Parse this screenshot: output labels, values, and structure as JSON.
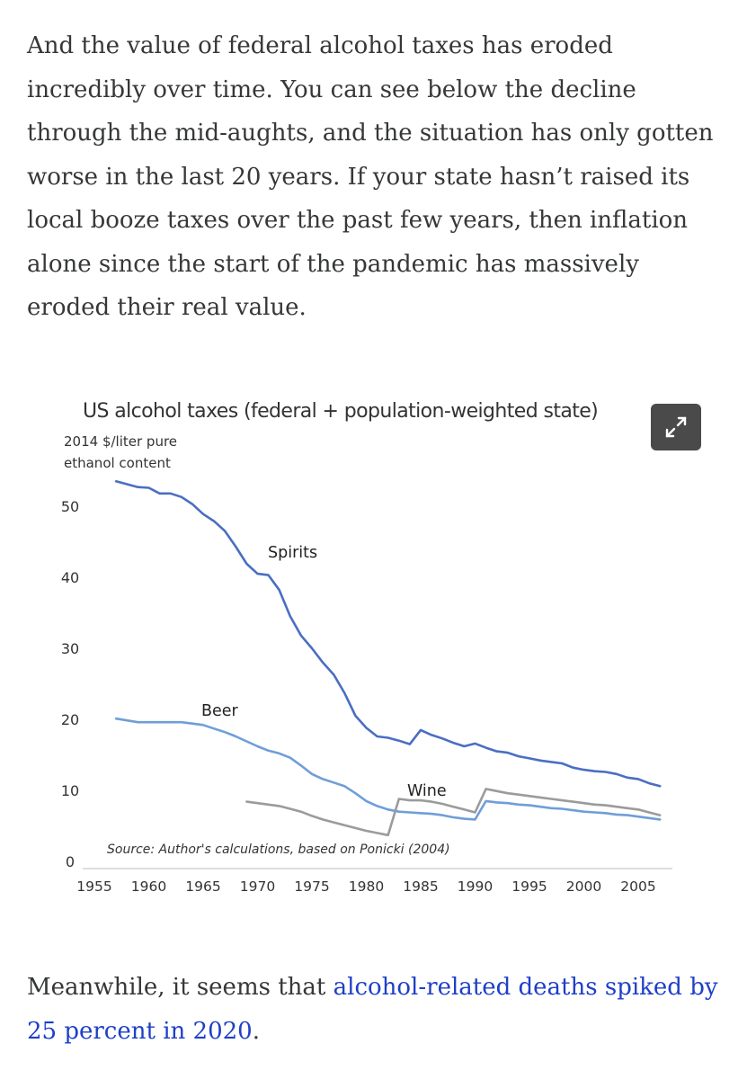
{
  "article": {
    "intro": "And the value of federal alcohol taxes has eroded incredibly over time. You can see below the decline through the mid-aughts, and the situation has only gotten worse in the last 20 years. If your state hasn’t raised its local booze taxes over the past few years, then inflation alone since the start of the pandemic has massively eroded their real value.",
    "outro_prefix": "Meanwhile, it seems that ",
    "outro_link": "alcohol-related deaths spiked by 25 percent in 2020",
    "outro_suffix": "."
  },
  "expand_button": {
    "icon": "expand-icon"
  },
  "chart_data": {
    "type": "line",
    "title": "US alcohol taxes (federal + population-weighted state)",
    "ylabel_lines": [
      "2014 $/liter pure",
      "ethanol content"
    ],
    "xlabel": "",
    "xlim": [
      1955,
      2008
    ],
    "ylim": [
      0,
      55
    ],
    "x_ticks": [
      1955,
      1960,
      1965,
      1970,
      1975,
      1980,
      1985,
      1990,
      1995,
      2000,
      2005
    ],
    "y_ticks": [
      0,
      10,
      20,
      30,
      40,
      50
    ],
    "grid": false,
    "legend": "none",
    "annotations": [
      {
        "text": "Spirits",
        "series": "Spirits"
      },
      {
        "text": "Beer",
        "series": "Beer"
      },
      {
        "text": "Wine",
        "series": "Wine"
      }
    ],
    "source": "Source: Author's calculations, based on Ponicki (2004)",
    "series": [
      {
        "name": "Spirits",
        "color": "#4a6ec2",
        "x": [
          1957,
          1959,
          1960,
          1961,
          1962,
          1963,
          1964,
          1965,
          1966,
          1967,
          1968,
          1969,
          1970,
          1971,
          1972,
          1973,
          1974,
          1975,
          1976,
          1977,
          1978,
          1979,
          1980,
          1981,
          1982,
          1983,
          1984,
          1985,
          1986,
          1987,
          1988,
          1989,
          1990,
          1991,
          1992,
          1993,
          1994,
          1995,
          1996,
          1997,
          1998,
          1999,
          2000,
          2001,
          2002,
          2003,
          2004,
          2005,
          2006,
          2007
        ],
        "y": [
          53.5,
          52.7,
          52.6,
          51.8,
          51.8,
          51.3,
          50.3,
          48.9,
          47.9,
          46.5,
          44.3,
          41.9,
          40.5,
          40.3,
          38.2,
          34.5,
          31.8,
          30.0,
          28.0,
          26.3,
          23.7,
          20.5,
          18.8,
          17.6,
          17.4,
          17.0,
          16.5,
          18.5,
          17.8,
          17.3,
          16.7,
          16.2,
          16.6,
          16.0,
          15.5,
          15.3,
          14.8,
          14.5,
          14.2,
          14.0,
          13.8,
          13.2,
          12.9,
          12.7,
          12.6,
          12.3,
          11.8,
          11.6,
          11.0,
          10.6
        ]
      },
      {
        "name": "Beer",
        "color": "#6f9ed8",
        "x": [
          1957,
          1959,
          1960,
          1961,
          1962,
          1963,
          1964,
          1965,
          1966,
          1967,
          1968,
          1969,
          1970,
          1971,
          1972,
          1973,
          1974,
          1975,
          1976,
          1977,
          1978,
          1979,
          1980,
          1981,
          1982,
          1983,
          1984,
          1985,
          1986,
          1987,
          1988,
          1989,
          1990,
          1991,
          1992,
          1993,
          1994,
          1995,
          1996,
          1997,
          1998,
          1999,
          2000,
          2001,
          2002,
          2003,
          2004,
          2005,
          2006,
          2007
        ],
        "y": [
          20.1,
          19.6,
          19.6,
          19.6,
          19.6,
          19.6,
          19.4,
          19.2,
          18.7,
          18.2,
          17.6,
          16.9,
          16.2,
          15.6,
          15.2,
          14.6,
          13.5,
          12.3,
          11.6,
          11.1,
          10.6,
          9.6,
          8.5,
          7.8,
          7.3,
          7.0,
          6.9,
          6.8,
          6.7,
          6.5,
          6.2,
          6.0,
          5.9,
          8.5,
          8.3,
          8.2,
          8.0,
          7.9,
          7.7,
          7.5,
          7.4,
          7.2,
          7.0,
          6.9,
          6.8,
          6.6,
          6.5,
          6.3,
          6.1,
          5.9
        ]
      },
      {
        "name": "Wine",
        "color": "#9b9b9b",
        "x": [
          1969,
          1970,
          1971,
          1972,
          1973,
          1974,
          1975,
          1976,
          1977,
          1978,
          1979,
          1980,
          1981,
          1982,
          1983,
          1984,
          1985,
          1986,
          1987,
          1988,
          1989,
          1990,
          1991,
          1992,
          1993,
          1994,
          1995,
          1996,
          1997,
          1998,
          1999,
          2000,
          2001,
          2002,
          2003,
          2004,
          2005,
          2006,
          2007
        ],
        "y": [
          8.4,
          8.2,
          8.0,
          7.8,
          7.4,
          7.0,
          6.4,
          5.9,
          5.5,
          5.1,
          4.7,
          4.3,
          4.0,
          3.7,
          8.8,
          8.6,
          8.6,
          8.4,
          8.1,
          7.7,
          7.3,
          6.9,
          10.2,
          9.9,
          9.6,
          9.4,
          9.2,
          9.0,
          8.8,
          8.6,
          8.4,
          8.2,
          8.0,
          7.9,
          7.7,
          7.5,
          7.3,
          6.9,
          6.5
        ]
      }
    ]
  }
}
